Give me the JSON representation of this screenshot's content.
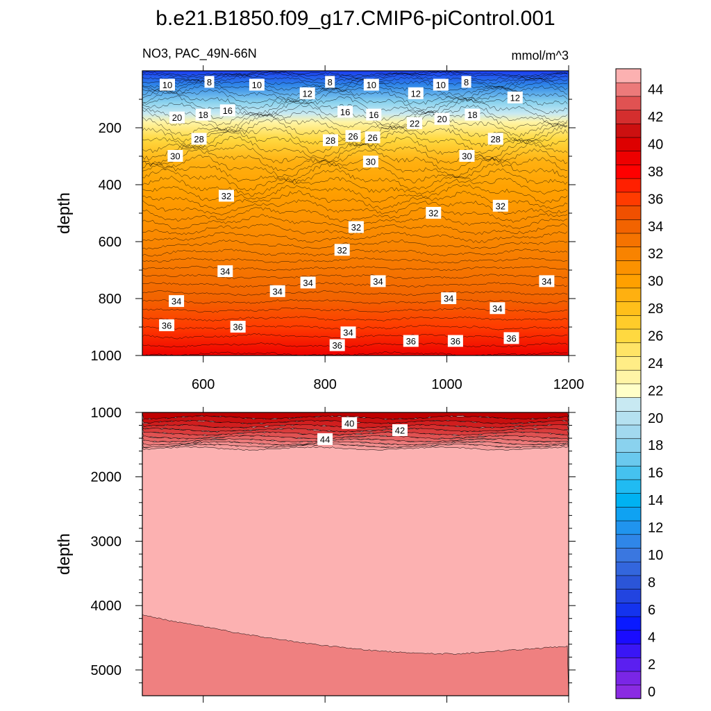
{
  "chart_data": [
    {
      "type": "contour",
      "panel": "upper",
      "title": "b.e21.B1850.f09_g17.CMIP6-piControl.001",
      "left_label": "NO3, PAC_49N-66N",
      "right_label": "mmol/m^3",
      "xlabel": "",
      "ylabel": "depth",
      "xlim": [
        500,
        1200
      ],
      "ylim": [
        0,
        1000
      ],
      "y_inverted": true,
      "xticks": [
        600,
        800,
        1000,
        1200
      ],
      "yticks": [
        200,
        400,
        600,
        800,
        1000
      ],
      "contour_labels": [
        {
          "text": "10",
          "x": 541,
          "y": 50
        },
        {
          "text": "8",
          "x": 610,
          "y": 40
        },
        {
          "text": "10",
          "x": 688,
          "y": 50
        },
        {
          "text": "12",
          "x": 771,
          "y": 80
        },
        {
          "text": "8",
          "x": 808,
          "y": 40
        },
        {
          "text": "10",
          "x": 876,
          "y": 50
        },
        {
          "text": "12",
          "x": 949,
          "y": 80
        },
        {
          "text": "10",
          "x": 990,
          "y": 50
        },
        {
          "text": "8",
          "x": 1032,
          "y": 40
        },
        {
          "text": "12",
          "x": 1112,
          "y": 95
        },
        {
          "text": "20",
          "x": 557,
          "y": 165
        },
        {
          "text": "18",
          "x": 600,
          "y": 155
        },
        {
          "text": "16",
          "x": 640,
          "y": 140
        },
        {
          "text": "16",
          "x": 833,
          "y": 145
        },
        {
          "text": "16",
          "x": 880,
          "y": 155
        },
        {
          "text": "22",
          "x": 947,
          "y": 185
        },
        {
          "text": "20",
          "x": 992,
          "y": 170
        },
        {
          "text": "18",
          "x": 1042,
          "y": 155
        },
        {
          "text": "28",
          "x": 593,
          "y": 240
        },
        {
          "text": "28",
          "x": 809,
          "y": 245
        },
        {
          "text": "26",
          "x": 846,
          "y": 230
        },
        {
          "text": "26",
          "x": 878,
          "y": 235
        },
        {
          "text": "28",
          "x": 1080,
          "y": 240
        },
        {
          "text": "30",
          "x": 554,
          "y": 300
        },
        {
          "text": "30",
          "x": 1033,
          "y": 300
        },
        {
          "text": "30",
          "x": 875,
          "y": 320
        },
        {
          "text": "32",
          "x": 638,
          "y": 440
        },
        {
          "text": "32",
          "x": 978,
          "y": 500
        },
        {
          "text": "32",
          "x": 1088,
          "y": 475
        },
        {
          "text": "32",
          "x": 851,
          "y": 550
        },
        {
          "text": "32",
          "x": 828,
          "y": 630
        },
        {
          "text": "34",
          "x": 636,
          "y": 705
        },
        {
          "text": "34",
          "x": 722,
          "y": 775
        },
        {
          "text": "34",
          "x": 772,
          "y": 745
        },
        {
          "text": "34",
          "x": 556,
          "y": 810
        },
        {
          "text": "34",
          "x": 887,
          "y": 740
        },
        {
          "text": "34",
          "x": 1003,
          "y": 800
        },
        {
          "text": "34",
          "x": 1164,
          "y": 740
        },
        {
          "text": "34",
          "x": 1083,
          "y": 835
        },
        {
          "text": "34",
          "x": 838,
          "y": 920
        },
        {
          "text": "36",
          "x": 540,
          "y": 895
        },
        {
          "text": "36",
          "x": 657,
          "y": 900
        },
        {
          "text": "36",
          "x": 820,
          "y": 965
        },
        {
          "text": "36",
          "x": 941,
          "y": 950
        },
        {
          "text": "36",
          "x": 1014,
          "y": 950
        },
        {
          "text": "36",
          "x": 1106,
          "y": 940
        }
      ]
    },
    {
      "type": "contour",
      "panel": "lower",
      "xlabel": "",
      "ylabel": "depth",
      "xlim": [
        500,
        1200
      ],
      "ylim": [
        1000,
        5400
      ],
      "y_inverted": true,
      "yticks": [
        1000,
        2000,
        3000,
        4000,
        5000
      ],
      "contour_labels": [
        {
          "text": "40",
          "x": 840,
          "y": 1170
        },
        {
          "text": "42",
          "x": 923,
          "y": 1280
        },
        {
          "text": "44",
          "x": 800,
          "y": 1420
        }
      ]
    },
    {
      "type": "colorbar",
      "levels": [
        0,
        1,
        2,
        3,
        4,
        5,
        6,
        7,
        8,
        9,
        10,
        11,
        12,
        13,
        14,
        15,
        16,
        17,
        18,
        19,
        20,
        21,
        22,
        23,
        24,
        25,
        26,
        27,
        28,
        29,
        30,
        31,
        32,
        33,
        34,
        35,
        36,
        37,
        38,
        39,
        40,
        41,
        42,
        43,
        44,
        45
      ],
      "tick_labels": [
        "0",
        "2",
        "4",
        "6",
        "8",
        "10",
        "12",
        "14",
        "16",
        "18",
        "20",
        "22",
        "24",
        "26",
        "28",
        "30",
        "32",
        "34",
        "36",
        "38",
        "40",
        "42",
        "44"
      ],
      "colors": [
        "#8a2be2",
        "#7a26e6",
        "#5b1ff0",
        "#3a16f5",
        "#1a0cff",
        "#0a1aff",
        "#1433ee",
        "#2244e0",
        "#2b55d8",
        "#3366dd",
        "#3a77e0",
        "#2f86e8",
        "#2094ee",
        "#0fa2f2",
        "#00b2f2",
        "#20bbf2",
        "#45c2ef",
        "#6ac9ee",
        "#8ad2ee",
        "#a2d9ef",
        "#b5e1f0",
        "#c8e9f2",
        "#ffffc8",
        "#fff4a6",
        "#ffed86",
        "#ffe466",
        "#ffd940",
        "#ffcc2a",
        "#ffbf1a",
        "#ffb010",
        "#ffa000",
        "#fb9200",
        "#f88300",
        "#f57300",
        "#f26300",
        "#f05000",
        "#ff3b00",
        "#ff2000",
        "#ff0000",
        "#ee0000",
        "#dd0000",
        "#cc1010",
        "#d42e2e",
        "#e05252",
        "#ec7a7a",
        "#fcb1b1"
      ]
    }
  ]
}
